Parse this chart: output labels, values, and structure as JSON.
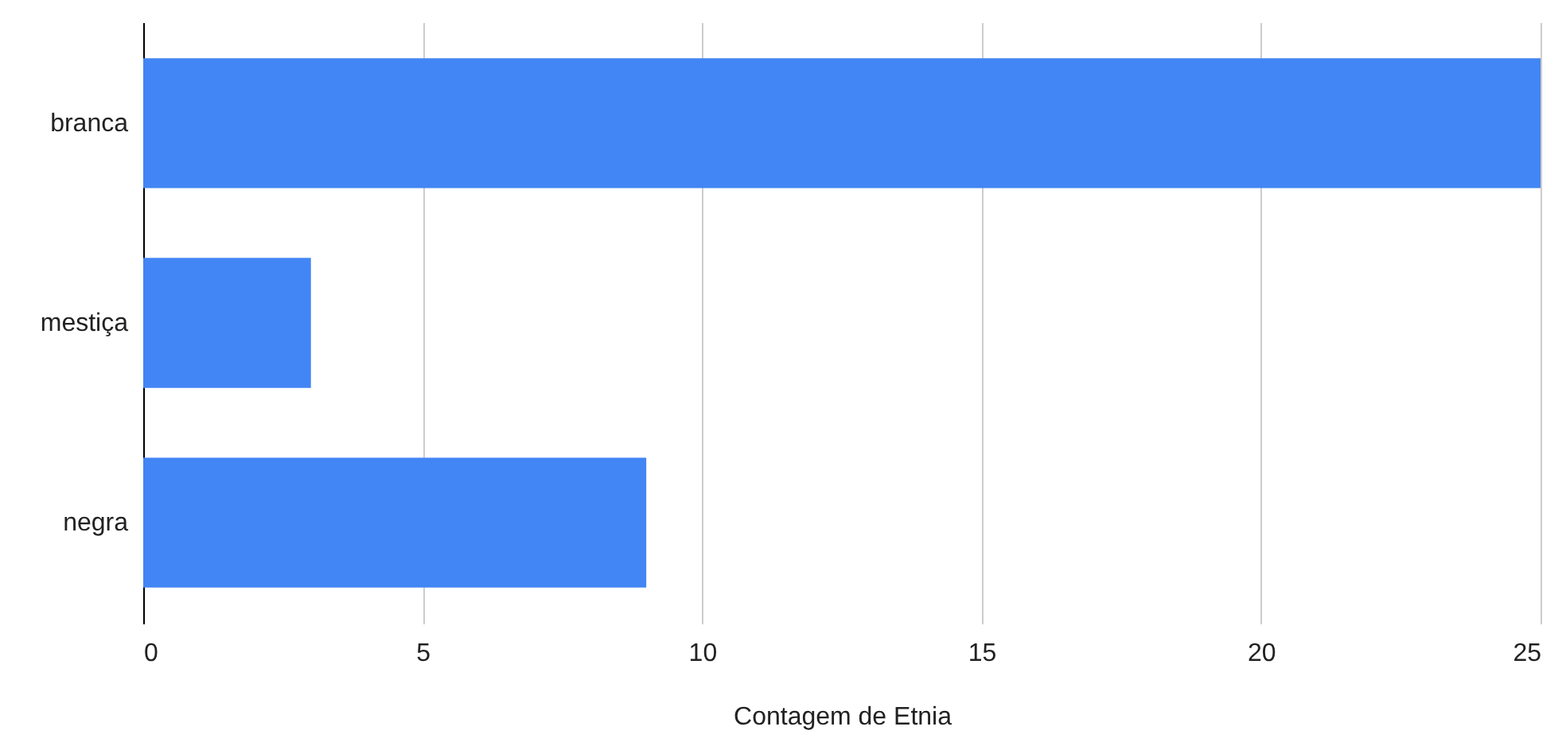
{
  "chart_data": {
    "type": "bar",
    "orientation": "horizontal",
    "xlabel": "Contagem de Etnia",
    "categories": [
      "branca",
      "mestiça",
      "negra"
    ],
    "values": [
      25,
      3,
      9
    ],
    "color": "#4285f4",
    "xlim": [
      0,
      25
    ],
    "xticks": [
      0,
      5,
      10,
      15,
      20,
      25
    ],
    "grid": "x"
  }
}
